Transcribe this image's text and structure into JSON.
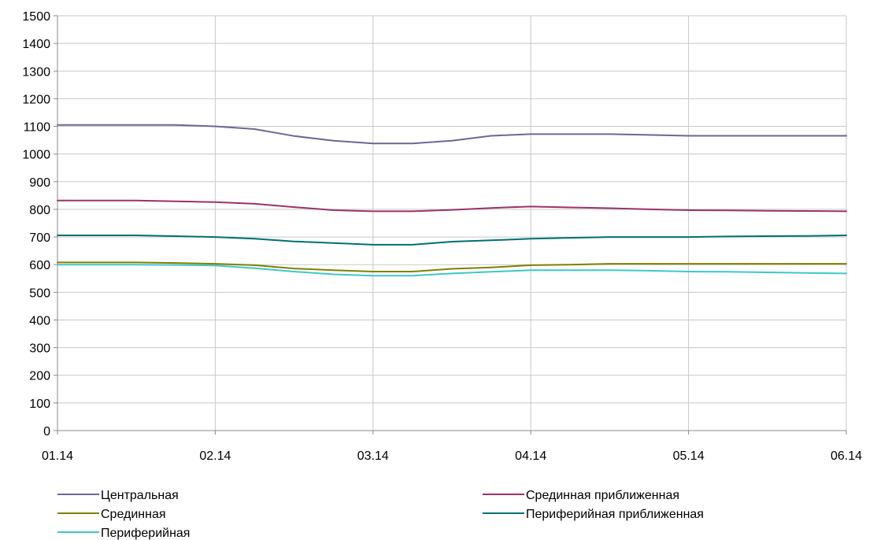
{
  "chart_data": {
    "type": "line",
    "title": "",
    "xlabel": "",
    "ylabel": "",
    "ylim": [
      0,
      1500
    ],
    "yticks": [
      0,
      100,
      200,
      300,
      400,
      500,
      600,
      700,
      800,
      900,
      1000,
      1100,
      1200,
      1300,
      1400,
      1500
    ],
    "categories": [
      "01.14",
      "02.14",
      "03.14",
      "04.14",
      "05.14",
      "06.14"
    ],
    "x_range": [
      0,
      5
    ],
    "grid": {
      "x": true,
      "y": true
    },
    "legend_position": "bottom",
    "series": [
      {
        "name": "Центральная",
        "color": "#6B6896",
        "x": [
          0,
          0.25,
          0.5,
          0.75,
          1,
          1.25,
          1.5,
          1.75,
          2,
          2.25,
          2.5,
          2.75,
          3,
          3.25,
          3.5,
          3.75,
          4,
          4.25,
          4.5,
          4.75,
          5
        ],
        "y": [
          1105,
          1105,
          1105,
          1105,
          1100,
          1090,
          1065,
          1048,
          1038,
          1038,
          1048,
          1066,
          1072,
          1072,
          1072,
          1069,
          1066,
          1066,
          1066,
          1066,
          1066
        ]
      },
      {
        "name": "Срединная приближенная",
        "color": "#993366",
        "x": [
          0,
          0.25,
          0.5,
          0.75,
          1,
          1.25,
          1.5,
          1.75,
          2,
          2.25,
          2.5,
          2.75,
          3,
          3.25,
          3.5,
          3.75,
          4,
          4.25,
          4.5,
          4.75,
          5
        ],
        "y": [
          832,
          832,
          832,
          829,
          826,
          820,
          808,
          797,
          793,
          793,
          798,
          805,
          810,
          807,
          804,
          800,
          797,
          796,
          795,
          794,
          793
        ]
      },
      {
        "name": "Срединная",
        "color": "#808000",
        "x": [
          0,
          0.25,
          0.5,
          0.75,
          1,
          1.25,
          1.5,
          1.75,
          2,
          2.25,
          2.5,
          2.75,
          3,
          3.25,
          3.5,
          3.75,
          4,
          4.25,
          4.5,
          4.75,
          5
        ],
        "y": [
          608,
          608,
          608,
          606,
          603,
          598,
          586,
          580,
          575,
          575,
          585,
          590,
          598,
          600,
          603,
          603,
          603,
          603,
          603,
          603,
          603
        ]
      },
      {
        "name": "Периферийная приближенная",
        "color": "#007070",
        "x": [
          0,
          0.25,
          0.5,
          0.75,
          1,
          1.25,
          1.5,
          1.75,
          2,
          2.25,
          2.5,
          2.75,
          3,
          3.25,
          3.5,
          3.75,
          4,
          4.25,
          4.5,
          4.75,
          5
        ],
        "y": [
          706,
          706,
          706,
          703,
          700,
          694,
          684,
          678,
          672,
          672,
          683,
          688,
          694,
          697,
          700,
          700,
          700,
          702,
          703,
          704,
          706
        ]
      },
      {
        "name": "Периферийная",
        "color": "#3CC8C8",
        "x": [
          0,
          0.25,
          0.5,
          0.75,
          1,
          1.25,
          1.5,
          1.75,
          2,
          2.25,
          2.5,
          2.75,
          3,
          3.25,
          3.5,
          3.75,
          4,
          4.25,
          4.5,
          4.75,
          5
        ],
        "y": [
          600,
          600,
          600,
          599,
          597,
          587,
          575,
          565,
          560,
          560,
          568,
          574,
          580,
          580,
          580,
          578,
          575,
          574,
          572,
          570,
          568
        ]
      }
    ]
  }
}
